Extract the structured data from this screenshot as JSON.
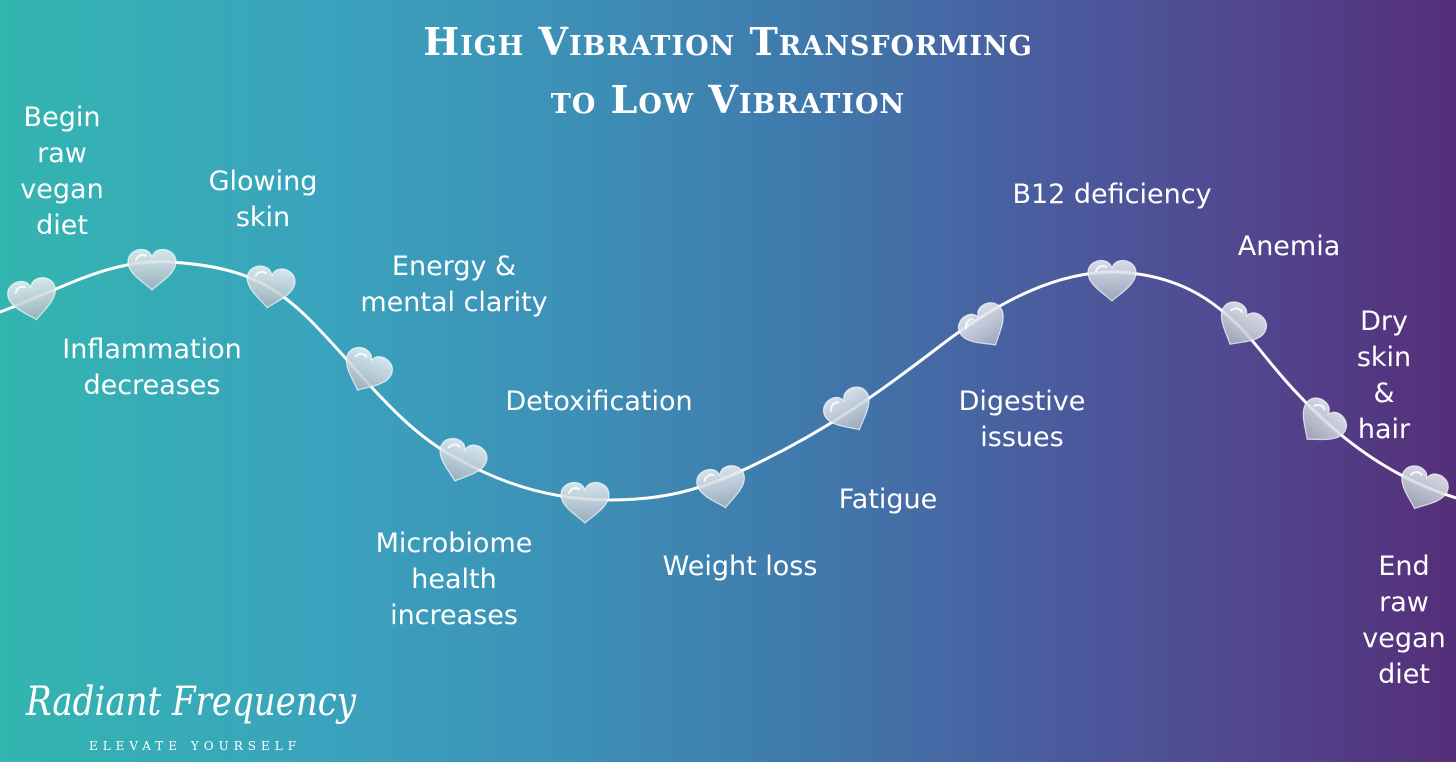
{
  "title": {
    "line1": "High Vibration Transforming",
    "line2": "to Low Vibration"
  },
  "stages": [
    {
      "id": "begin",
      "label": "Begin\nraw\nvegan\ndiet"
    },
    {
      "id": "inflammation",
      "label": "Inflammation\ndecreases"
    },
    {
      "id": "glowing-skin",
      "label": "Glowing\nskin"
    },
    {
      "id": "energy",
      "label": "Energy &\nmental clarity"
    },
    {
      "id": "microbiome",
      "label": "Microbiome\nhealth\nincreases"
    },
    {
      "id": "detox",
      "label": "Detoxification"
    },
    {
      "id": "weight-loss",
      "label": "Weight loss"
    },
    {
      "id": "fatigue",
      "label": "Fatigue"
    },
    {
      "id": "digestive",
      "label": "Digestive\nissues"
    },
    {
      "id": "b12",
      "label": "B12 deficiency"
    },
    {
      "id": "anemia",
      "label": "Anemia"
    },
    {
      "id": "dry-skin",
      "label": "Dry skin\n& hair"
    },
    {
      "id": "end",
      "label": "End\nraw\nvegan\ndiet"
    }
  ],
  "brand": {
    "name": "Radiant Frequency",
    "tagline": "ELEVATE YOURSELF"
  },
  "colors": {
    "gradient_start": "#33b5b0",
    "gradient_end": "#542f78",
    "curve": "#ffffff",
    "heart_fill": "#d7dde3"
  },
  "icons": {
    "marker": "heart-icon",
    "count": 13
  }
}
